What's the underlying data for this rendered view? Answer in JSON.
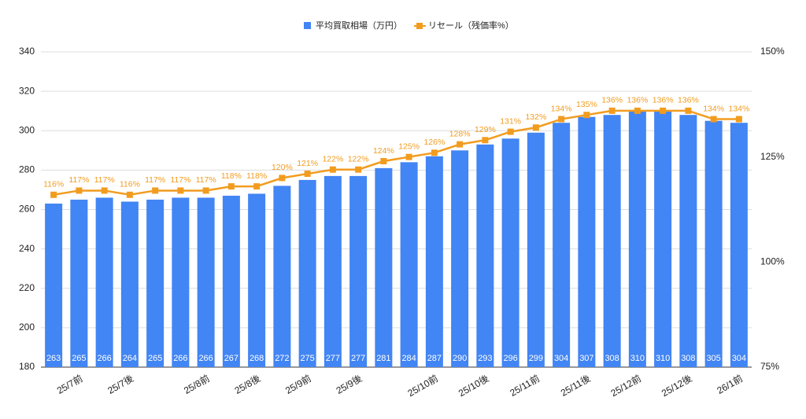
{
  "chart_data": {
    "type": "bar-line",
    "categories": [
      null,
      "25/7前",
      null,
      "25/7後",
      null,
      null,
      "25/8前",
      null,
      "25/8後",
      null,
      "25/9前",
      null,
      "25/9後",
      null,
      null,
      "25/10前",
      null,
      "25/10後",
      null,
      "25/11前",
      null,
      "25/11後",
      null,
      "25/12前",
      null,
      "25/12後",
      null,
      "26/1前"
    ],
    "series": [
      {
        "name": "平均買取相場（万円）",
        "color": "#4285f4",
        "type": "bar",
        "values": [
          263,
          265,
          266,
          264,
          265,
          266,
          266,
          267,
          268,
          272,
          275,
          277,
          277,
          281,
          284,
          287,
          290,
          293,
          296,
          299,
          304,
          307,
          308,
          310,
          310,
          308,
          305,
          304
        ]
      },
      {
        "name": "リセール（残価率%）",
        "color": "#f29c1f",
        "type": "line",
        "axis": "y2",
        "values": [
          116,
          117,
          117,
          116,
          117,
          117,
          117,
          118,
          118,
          120,
          121,
          122,
          122,
          124,
          125,
          126,
          128,
          129,
          131,
          132,
          134,
          135,
          136,
          136,
          136,
          136,
          134,
          134
        ],
        "value_labels": [
          "116%",
          "117%",
          "117%",
          "116%",
          "117%",
          "117%",
          "117%",
          "118%",
          "118%",
          "120%",
          "121%",
          "122%",
          "122%",
          "124%",
          "125%",
          "126%",
          "128%",
          "129%",
          "131%",
          "132%",
          "134%",
          "135%",
          "136%",
          "136%",
          "136%",
          "136%",
          "134%",
          "134%"
        ]
      }
    ],
    "ylim": [
      180,
      340
    ],
    "yticks": [
      180,
      200,
      220,
      240,
      260,
      280,
      300,
      320,
      340
    ],
    "y2lim": [
      75,
      150
    ],
    "y2ticks": [
      {
        "value": 75,
        "label": "75%"
      },
      {
        "value": 100,
        "label": "100%"
      },
      {
        "value": 125,
        "label": "125%"
      },
      {
        "value": 150,
        "label": "150%"
      }
    ],
    "grid": true
  }
}
